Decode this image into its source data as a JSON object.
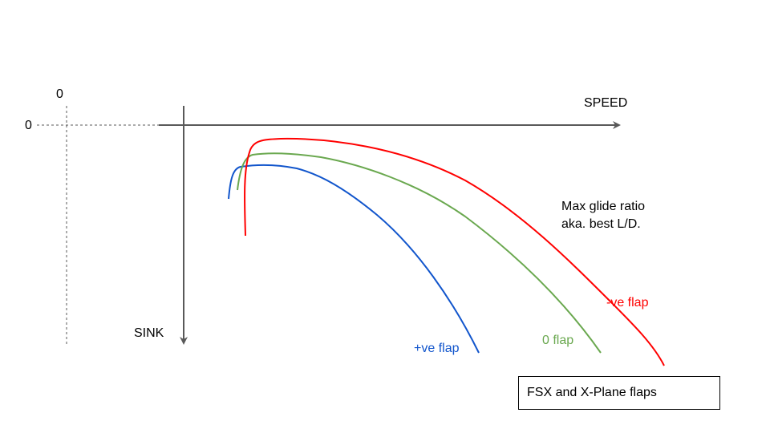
{
  "axes": {
    "x_label": "SPEED",
    "y_label": "SINK",
    "zero_top": "0",
    "zero_left": "0"
  },
  "annotation": {
    "line1": "Max glide ratio",
    "line2": "aka. best L/D."
  },
  "curves": [
    {
      "label": "+ve flap",
      "color": "#1155cc"
    },
    {
      "label": "0 flap",
      "color": "#6aa84f"
    },
    {
      "label": "-ve flap",
      "color": "#ff0000"
    }
  ],
  "legend_box": {
    "text": "FSX and X-Plane flaps"
  },
  "colors": {
    "axis": "#595959",
    "dashed": "#595959"
  }
}
